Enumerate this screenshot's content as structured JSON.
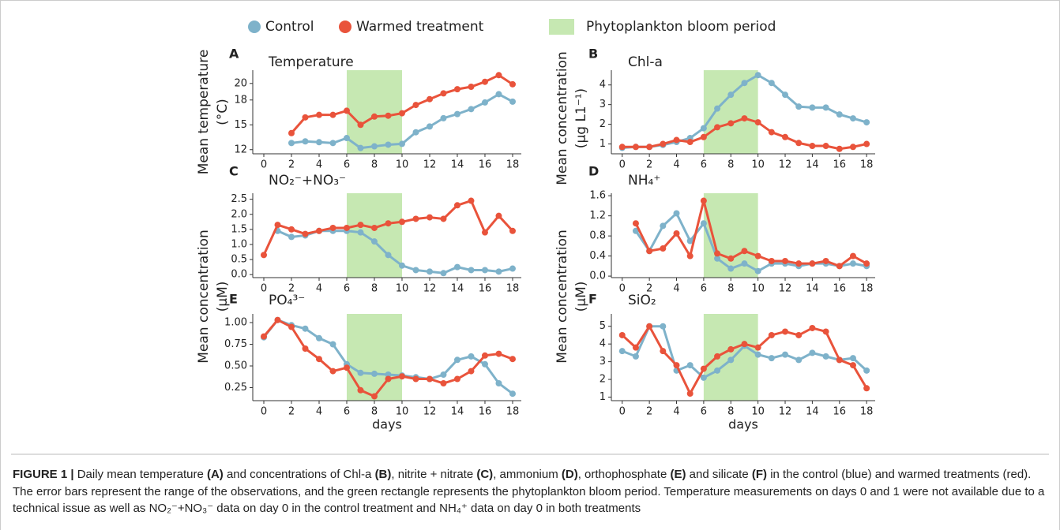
{
  "legend": [
    {
      "name": "Control",
      "color": "#7eb2ca"
    },
    {
      "name": "Warmed treatment",
      "color": "#e9533b"
    },
    {
      "name": "Phytoplankton bloom period",
      "color": "#c6e8b2"
    }
  ],
  "chart_data": [
    {
      "type": "line",
      "letter": "A",
      "title": "Temperature",
      "ylabel": [
        "Mean temperature",
        "(°C)"
      ],
      "x": [
        0,
        1,
        2,
        3,
        4,
        5,
        6,
        7,
        8,
        9,
        10,
        11,
        12,
        13,
        14,
        15,
        16,
        17,
        18
      ],
      "xlim": [
        -0.8,
        18.63
      ],
      "xticks": [
        0,
        2,
        4,
        6,
        8,
        10,
        12,
        14,
        16,
        18
      ],
      "ylim": [
        11.5,
        21.6
      ],
      "yticks": [
        12,
        15,
        18,
        20
      ],
      "bloom": [
        6,
        10
      ],
      "series": [
        {
          "values": [
            null,
            null,
            12.8,
            13,
            12.9,
            12.8,
            13.4,
            12.2,
            12.4,
            12.6,
            12.7,
            14.1,
            14.8,
            15.8,
            16.3,
            16.9,
            17.7,
            18.7,
            17.8
          ]
        },
        {
          "values": [
            null,
            null,
            14,
            15.9,
            16.2,
            16.2,
            16.7,
            15,
            16,
            16.1,
            16.4,
            17.4,
            18.1,
            18.8,
            19.3,
            19.6,
            20.2,
            21,
            19.9
          ]
        }
      ]
    },
    {
      "type": "line",
      "letter": "B",
      "title": "Chl-a",
      "ylabel": [
        "Mean concentration",
        "(µg L1⁻¹)"
      ],
      "x": [
        0,
        1,
        2,
        3,
        4,
        5,
        6,
        7,
        8,
        9,
        10,
        11,
        12,
        13,
        14,
        15,
        16,
        17,
        18
      ],
      "xlim": [
        -0.8,
        18.63
      ],
      "xticks": [
        0,
        2,
        4,
        6,
        8,
        10,
        12,
        14,
        16,
        18
      ],
      "ylim": [
        0.5,
        4.75
      ],
      "yticks": [
        1,
        2,
        3,
        4
      ],
      "bloom": [
        6,
        10
      ],
      "series": [
        {
          "values": [
            0.8,
            0.85,
            0.85,
            0.95,
            1.1,
            1.3,
            1.8,
            2.8,
            3.5,
            4.1,
            4.5,
            4.1,
            3.5,
            2.9,
            2.85,
            2.85,
            2.5,
            2.3,
            2.1
          ]
        },
        {
          "values": [
            0.85,
            0.85,
            0.85,
            1,
            1.2,
            1.1,
            1.35,
            1.85,
            2.05,
            2.3,
            2.1,
            1.6,
            1.35,
            1.05,
            0.9,
            0.9,
            0.75,
            0.85,
            1
          ]
        }
      ]
    },
    {
      "type": "line",
      "letter": "C",
      "title": "NO₂⁻+NO₃⁻",
      "ylabel": [
        "Mean concentration",
        "(µM)"
      ],
      "x": [
        0,
        1,
        2,
        3,
        4,
        5,
        6,
        7,
        8,
        9,
        10,
        11,
        12,
        13,
        14,
        15,
        16,
        17,
        18
      ],
      "xlim": [
        -0.8,
        18.63
      ],
      "xticks": [
        0,
        2,
        4,
        6,
        8,
        10,
        12,
        14,
        16,
        18
      ],
      "ylim": [
        -0.1,
        2.7
      ],
      "yticks": [
        {
          "value": 0,
          "label": "0.0"
        },
        0.5,
        {
          "value": 1,
          "label": "1.0"
        },
        1.5,
        {
          "value": 2,
          "label": "2.0"
        },
        2.5
      ],
      "bloom": [
        6,
        10
      ],
      "series": [
        {
          "values": [
            null,
            1.45,
            1.25,
            1.3,
            1.45,
            1.45,
            1.45,
            1.4,
            1.1,
            0.65,
            0.3,
            0.15,
            0.1,
            0.05,
            0.25,
            0.15,
            0.15,
            0.1,
            0.2
          ]
        },
        {
          "values": [
            0.65,
            1.65,
            1.5,
            1.35,
            1.45,
            1.55,
            1.55,
            1.65,
            1.55,
            1.7,
            1.75,
            1.85,
            1.9,
            1.85,
            2.3,
            2.45,
            1.4,
            1.95,
            1.45
          ]
        }
      ]
    },
    {
      "type": "line",
      "letter": "D",
      "title": "NH₄⁺",
      "ylabel": [
        "Mean concentration",
        "(µM)"
      ],
      "x": [
        0,
        1,
        2,
        3,
        4,
        5,
        6,
        7,
        8,
        9,
        10,
        11,
        12,
        13,
        14,
        15,
        16,
        17,
        18
      ],
      "xlim": [
        -0.8,
        18.63
      ],
      "xticks": [
        0,
        2,
        4,
        6,
        8,
        10,
        12,
        14,
        16,
        18
      ],
      "ylim": [
        -0.03,
        1.65
      ],
      "yticks": [
        {
          "value": 0,
          "label": "0.0"
        },
        0.4,
        0.8,
        1.2,
        1.6
      ],
      "bloom": [
        6,
        10
      ],
      "series": [
        {
          "values": [
            null,
            0.9,
            0.5,
            1,
            1.25,
            0.7,
            1.05,
            0.35,
            0.15,
            0.25,
            0.1,
            0.25,
            0.25,
            0.2,
            0.25,
            0.25,
            0.2,
            0.25,
            0.2
          ]
        },
        {
          "values": [
            null,
            1.05,
            0.5,
            0.55,
            0.85,
            0.4,
            1.5,
            0.45,
            0.35,
            0.5,
            0.4,
            0.3,
            0.3,
            0.25,
            0.25,
            0.3,
            0.2,
            0.4,
            0.25
          ]
        }
      ]
    },
    {
      "type": "line",
      "letter": "E",
      "title": "PO₄³⁻",
      "xlabel": "days",
      "x": [
        0,
        1,
        2,
        3,
        4,
        5,
        6,
        7,
        8,
        9,
        10,
        11,
        12,
        13,
        14,
        15,
        16,
        17,
        18
      ],
      "xlim": [
        -0.8,
        18.63
      ],
      "xticks": [
        0,
        2,
        4,
        6,
        8,
        10,
        12,
        14,
        16,
        18
      ],
      "ylim": [
        0.1,
        1.1
      ],
      "yticks": [
        0.25,
        {
          "value": 0.5,
          "label": "0.50"
        },
        0.75,
        {
          "value": 1,
          "label": "1.00"
        }
      ],
      "bloom": [
        6,
        10
      ],
      "series": [
        {
          "values": [
            0.83,
            1.03,
            0.97,
            0.93,
            0.82,
            0.75,
            0.52,
            0.42,
            0.41,
            0.4,
            0.39,
            0.37,
            0.35,
            0.4,
            0.57,
            0.61,
            0.52,
            0.3,
            0.18
          ]
        },
        {
          "values": [
            0.84,
            1.03,
            0.95,
            0.7,
            0.58,
            0.44,
            0.48,
            0.22,
            0.15,
            0.35,
            0.38,
            0.35,
            0.35,
            0.3,
            0.35,
            0.44,
            0.62,
            0.64,
            0.58
          ]
        }
      ]
    },
    {
      "type": "line",
      "letter": "F",
      "title": "SiO₂",
      "xlabel": "days",
      "x": [
        0,
        1,
        2,
        3,
        4,
        5,
        6,
        7,
        8,
        9,
        10,
        11,
        12,
        13,
        14,
        15,
        16,
        17,
        18
      ],
      "xlim": [
        -0.8,
        18.63
      ],
      "xticks": [
        0,
        2,
        4,
        6,
        8,
        10,
        12,
        14,
        16,
        18
      ],
      "ylim": [
        0.8,
        5.7
      ],
      "yticks": [
        1,
        2,
        3,
        4,
        5
      ],
      "bloom": [
        6,
        10
      ],
      "series": [
        {
          "values": [
            3.6,
            3.3,
            5,
            5,
            2.5,
            2.8,
            2.1,
            2.5,
            3.1,
            3.9,
            3.4,
            3.2,
            3.4,
            3.1,
            3.5,
            3.3,
            3.1,
            3.2,
            2.5
          ]
        },
        {
          "values": [
            4.5,
            3.8,
            5,
            3.6,
            2.8,
            1.2,
            2.6,
            3.3,
            3.7,
            4,
            3.8,
            4.5,
            4.7,
            4.5,
            4.9,
            4.7,
            3.1,
            2.8,
            1.5
          ]
        }
      ]
    }
  ],
  "caption": {
    "parts": [
      "FIGURE 1 |",
      " Daily mean temperature ",
      "(A)",
      " and concentrations of Chl-a ",
      "(B)",
      ", nitrite + nitrate ",
      "(C)",
      ", ammonium ",
      "(D)",
      ", orthophosphate ",
      "(E)",
      " and silicate ",
      "(F)",
      " in the control (blue) and warmed treatments (red). The error bars represent the range of the observations, and the green rectangle represents the phytoplankton bloom period. Temperature measurements on days 0 and 1 were not available due to a technical issue as well as NO₂⁻+NO₃⁻ data on day 0 in the control treatment and NH₄⁺ data on day 0 in both treatments"
    ]
  }
}
